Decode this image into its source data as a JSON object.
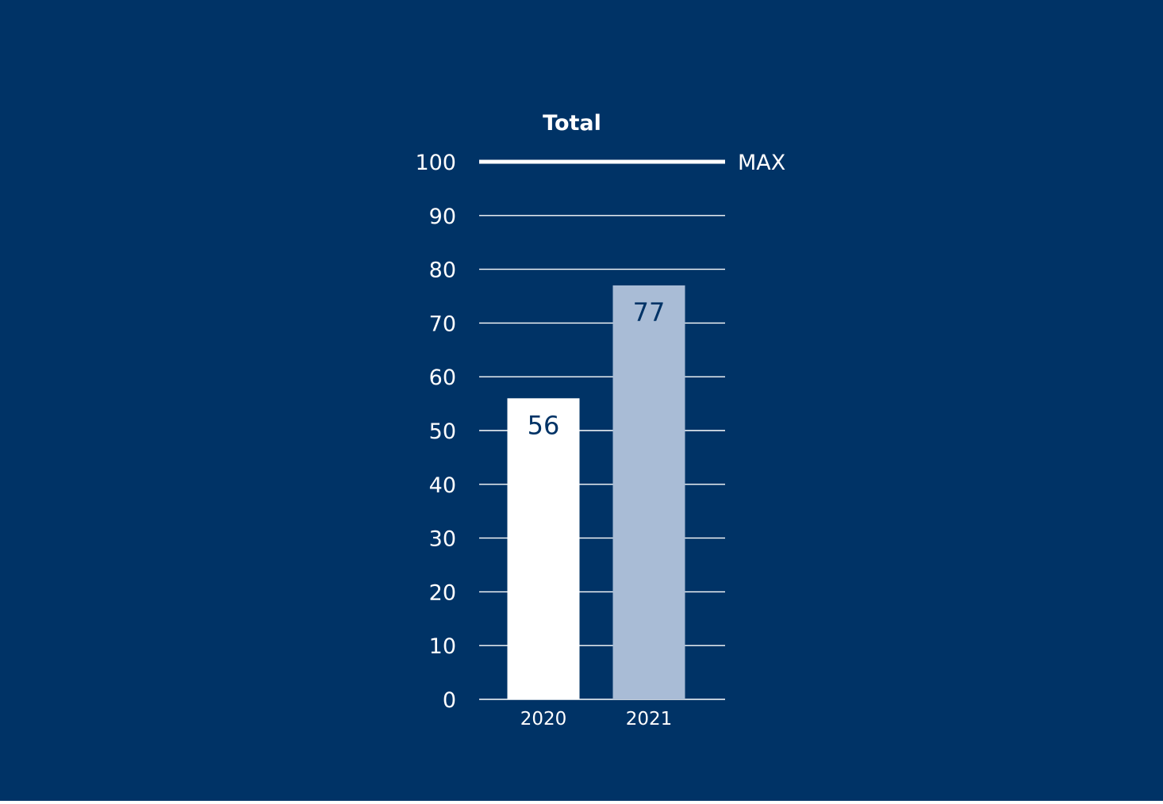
{
  "colors": {
    "background": "#003366",
    "grid": "#ffffff",
    "text": "#ffffff",
    "bar_2020": "#ffffff",
    "bar_2021": "#a9bcd6",
    "bar_label": "#003366"
  },
  "chart_data": {
    "type": "bar",
    "title": "Total",
    "categories": [
      "2020",
      "2021"
    ],
    "values": [
      56,
      77
    ],
    "data_labels": [
      "56",
      "77"
    ],
    "ylim": [
      0,
      100
    ],
    "yticks": [
      "0",
      "10",
      "20",
      "30",
      "40",
      "50",
      "60",
      "70",
      "80",
      "90",
      "100"
    ],
    "reference_line": {
      "value": 100,
      "label": "MAX"
    },
    "grid": true,
    "xlabel": "",
    "ylabel": ""
  }
}
